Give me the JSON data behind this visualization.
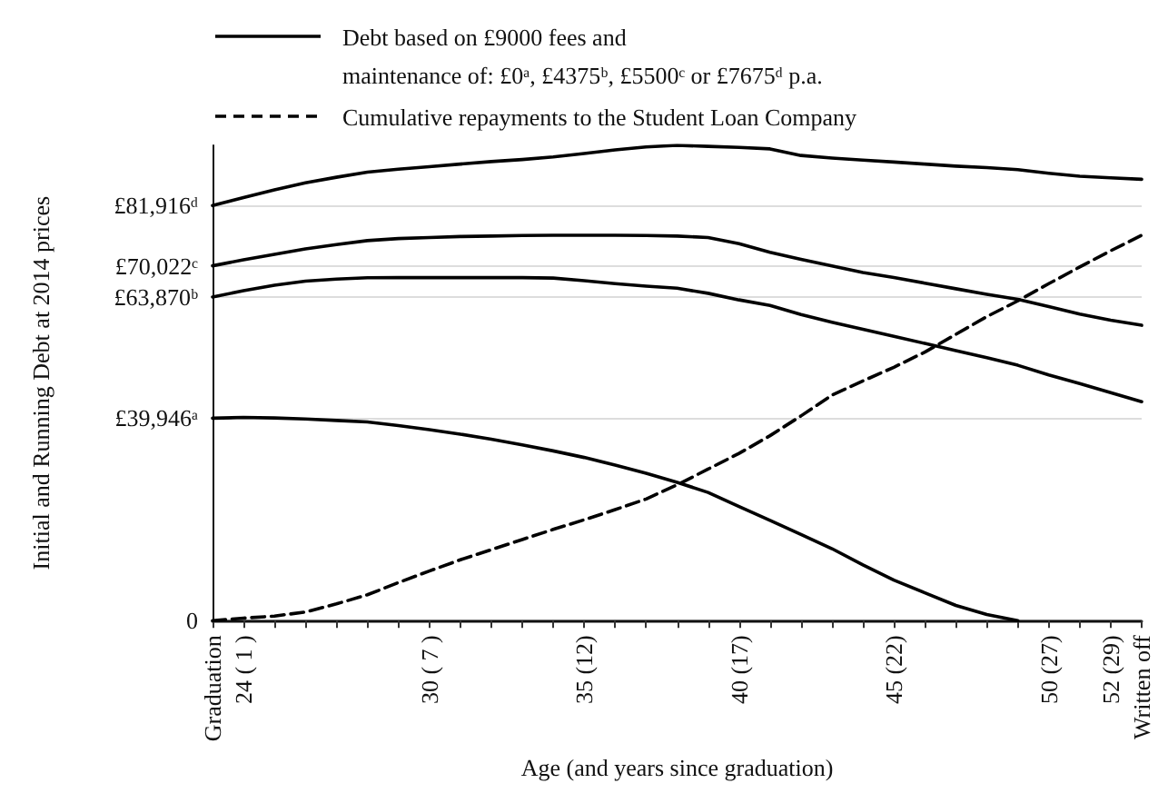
{
  "chart_data": {
    "type": "line",
    "xlabel": "Age (and years since graduation)",
    "ylabel": "Initial and Running Debt at 2014 prices",
    "categories": [
      "Graduation",
      "24 ( 1 )",
      null,
      null,
      null,
      null,
      null,
      "30 ( 7 )",
      null,
      null,
      null,
      null,
      "35 (12)",
      null,
      null,
      null,
      null,
      "40 (17)",
      null,
      null,
      null,
      null,
      "45 (22)",
      null,
      null,
      null,
      null,
      "50 (27)",
      null,
      "52 (29)",
      "Written off"
    ],
    "ylim": [
      0,
      93800
    ],
    "yticks": [
      0,
      {
        "value": 39946,
        "label": "£39,946ᵃ"
      },
      {
        "value": 63870,
        "label": "£63,870ᵇ"
      },
      {
        "value": 70022,
        "label": "£70,022ᶜ"
      },
      {
        "value": 81916,
        "label": "£81,916ᵈ"
      }
    ],
    "grid": "y",
    "legend": "top",
    "marker": "none",
    "series": [
      {
        "name": "Debt based on £9000 fees and\nmaintenance of: £0ᵃ, £4375ᵇ, £5500ᶜ or £7675ᵈ p.a.",
        "color": "#000000",
        "line_style": "solid",
        "values": [
          39946,
          40100,
          40000,
          39800,
          39500,
          39200,
          38500,
          37700,
          36800,
          35800,
          34700,
          33500,
          32200,
          30700,
          29100,
          27300,
          25300,
          22500,
          19800,
          17000,
          14200,
          11000,
          8000,
          5500,
          3000,
          1200,
          0,
          null,
          null,
          null,
          null
        ]
      },
      {
        "color": "#000000",
        "line_style": "solid",
        "values": [
          63870,
          65100,
          66200,
          67000,
          67400,
          67670,
          67700,
          67700,
          67700,
          67700,
          67700,
          67600,
          67100,
          66500,
          66000,
          65600,
          64600,
          63300,
          62200,
          60400,
          58900,
          57500,
          56100,
          54700,
          53300,
          51900,
          50400,
          48500,
          46800,
          45000,
          43215
        ]
      },
      {
        "color": "#000000",
        "line_style": "solid",
        "values": [
          70022,
          71200,
          72300,
          73365,
          74200,
          75000,
          75400,
          75600,
          75800,
          75900,
          76000,
          76050,
          76050,
          76050,
          76000,
          75900,
          75600,
          74400,
          72700,
          71300,
          70000,
          68700,
          67700,
          66600,
          65500,
          64400,
          63400,
          62000,
          60500,
          59300,
          58290
        ]
      },
      {
        "color": "#000000",
        "line_style": "solid",
        "values": [
          81916,
          83500,
          85000,
          86400,
          87500,
          88500,
          89100,
          89600,
          90100,
          90600,
          91000,
          91500,
          92200,
          92900,
          93500,
          93800,
          93600,
          93400,
          93100,
          91800,
          91300,
          90900,
          90500,
          90100,
          89700,
          89400,
          89000,
          88300,
          87700,
          87400,
          87100
        ]
      },
      {
        "name": "Cumulative repayments to the Student Loan Company",
        "color": "#000000",
        "line_style": "dashed",
        "values": [
          0,
          500,
          900,
          1700,
          3300,
          5100,
          7500,
          9800,
          12000,
          14000,
          16000,
          18000,
          19900,
          21900,
          24000,
          26800,
          29900,
          33000,
          36500,
          40400,
          44500,
          47300,
          50000,
          53000,
          56500,
          60000,
          63100,
          66500,
          69800,
          73000,
          76045
        ]
      }
    ]
  }
}
